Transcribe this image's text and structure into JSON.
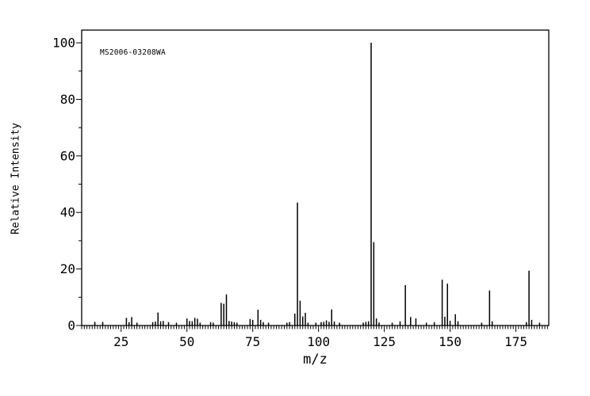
{
  "colors": {
    "background": "#ffffff",
    "axis": "#000000",
    "bar": "#000000",
    "text": "#000000"
  },
  "chart_data": {
    "type": "bar",
    "title": "MS2006-03208WA",
    "xlabel": "m/z",
    "ylabel": "Relative Intensity",
    "xlim": [
      10,
      187.5
    ],
    "ylim": [
      0,
      104.5
    ],
    "x_major_ticks": [
      25,
      50,
      75,
      100,
      125,
      150,
      175
    ],
    "x_minor_step": 1,
    "y_major_ticks": [
      0,
      20,
      40,
      60,
      80,
      100
    ],
    "y_minor_step": 10,
    "grid": false,
    "legend": "none",
    "peaks": [
      [
        15,
        1.3
      ],
      [
        18,
        1.3
      ],
      [
        27,
        2.7
      ],
      [
        28,
        1.2
      ],
      [
        29,
        3.0
      ],
      [
        31,
        1.0
      ],
      [
        37,
        1.2
      ],
      [
        38,
        1.4
      ],
      [
        39,
        4.6
      ],
      [
        40,
        1.5
      ],
      [
        41,
        1.6
      ],
      [
        43,
        1.2
      ],
      [
        46,
        1.0
      ],
      [
        50,
        2.5
      ],
      [
        51,
        1.6
      ],
      [
        52,
        1.5
      ],
      [
        53,
        2.7
      ],
      [
        54,
        2.4
      ],
      [
        55,
        1.0
      ],
      [
        59,
        1.2
      ],
      [
        60,
        1.0
      ],
      [
        63,
        8.0
      ],
      [
        64,
        7.7
      ],
      [
        65,
        11.0
      ],
      [
        66,
        1.6
      ],
      [
        67,
        1.4
      ],
      [
        68,
        1.2
      ],
      [
        69,
        1.0
      ],
      [
        74,
        2.3
      ],
      [
        75,
        2.0
      ],
      [
        77,
        5.6
      ],
      [
        78,
        2.0
      ],
      [
        79,
        1.2
      ],
      [
        81,
        1.0
      ],
      [
        88,
        1.0
      ],
      [
        89,
        1.2
      ],
      [
        91,
        4.2
      ],
      [
        92,
        43.5
      ],
      [
        93,
        8.8
      ],
      [
        94,
        3.2
      ],
      [
        95,
        4.5
      ],
      [
        96,
        1.0
      ],
      [
        99,
        1.0
      ],
      [
        101,
        1.2
      ],
      [
        102,
        1.3
      ],
      [
        103,
        1.8
      ],
      [
        104,
        1.3
      ],
      [
        105,
        5.7
      ],
      [
        106,
        1.4
      ],
      [
        108,
        1.0
      ],
      [
        117,
        1.0
      ],
      [
        118,
        1.3
      ],
      [
        119,
        1.5
      ],
      [
        120,
        100.0
      ],
      [
        121,
        29.5
      ],
      [
        122,
        2.5
      ],
      [
        123,
        1.1
      ],
      [
        128,
        1.0
      ],
      [
        131,
        1.5
      ],
      [
        133,
        14.3
      ],
      [
        135,
        3.0
      ],
      [
        137,
        2.5
      ],
      [
        141,
        1.0
      ],
      [
        144,
        1.2
      ],
      [
        147,
        16.2
      ],
      [
        148,
        3.1
      ],
      [
        149,
        14.8
      ],
      [
        150,
        1.7
      ],
      [
        152,
        4.0
      ],
      [
        153,
        1.5
      ],
      [
        162,
        1.0
      ],
      [
        165,
        12.4
      ],
      [
        166,
        1.5
      ],
      [
        179,
        1.2
      ],
      [
        180,
        19.4
      ],
      [
        181,
        2.0
      ],
      [
        184,
        1.0
      ]
    ]
  }
}
